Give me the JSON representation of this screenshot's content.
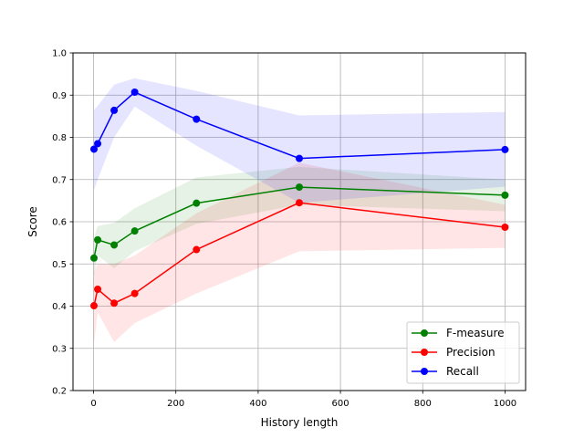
{
  "chart_data": {
    "type": "line",
    "title": "",
    "xlabel": "History length",
    "ylabel": "Score",
    "xlim": [
      -50,
      1050
    ],
    "ylim": [
      0.2,
      1.0
    ],
    "xticks": [
      0,
      200,
      400,
      600,
      800,
      1000
    ],
    "yticks": [
      0.2,
      0.3,
      0.4,
      0.5,
      0.6,
      0.7,
      0.8,
      0.9,
      1.0
    ],
    "xtick_labels": [
      "0",
      "200",
      "400",
      "600",
      "800",
      "1000"
    ],
    "ytick_labels": [
      "0.2",
      "0.3",
      "0.4",
      "0.5",
      "0.6",
      "0.7",
      "0.8",
      "0.9",
      "1.0"
    ],
    "grid": true,
    "legend_position": "lower-right",
    "x": [
      1,
      10,
      50,
      100,
      250,
      500,
      1000
    ],
    "series": [
      {
        "name": "F-measure",
        "color": "#008000",
        "values": [
          0.514,
          0.557,
          0.545,
          0.578,
          0.644,
          0.682,
          0.663
        ],
        "band_upper": [
          0.562,
          0.59,
          0.597,
          0.632,
          0.705,
          0.73,
          0.7
        ],
        "band_lower": [
          0.47,
          0.52,
          0.49,
          0.53,
          0.595,
          0.64,
          0.625
        ]
      },
      {
        "name": "Precision",
        "color": "#ff0000",
        "values": [
          0.401,
          0.44,
          0.407,
          0.43,
          0.534,
          0.645,
          0.587
        ],
        "band_upper": [
          0.48,
          0.5,
          0.5,
          0.52,
          0.62,
          0.74,
          0.64
        ],
        "band_lower": [
          0.31,
          0.385,
          0.315,
          0.36,
          0.43,
          0.53,
          0.538
        ]
      },
      {
        "name": "Recall",
        "color": "#0000ff",
        "values": [
          0.772,
          0.785,
          0.864,
          0.907,
          0.843,
          0.75,
          0.771
        ],
        "band_upper": [
          0.865,
          0.875,
          0.925,
          0.94,
          0.91,
          0.852,
          0.86
        ],
        "band_lower": [
          0.675,
          0.7,
          0.8,
          0.873,
          0.78,
          0.645,
          0.683
        ]
      }
    ]
  }
}
